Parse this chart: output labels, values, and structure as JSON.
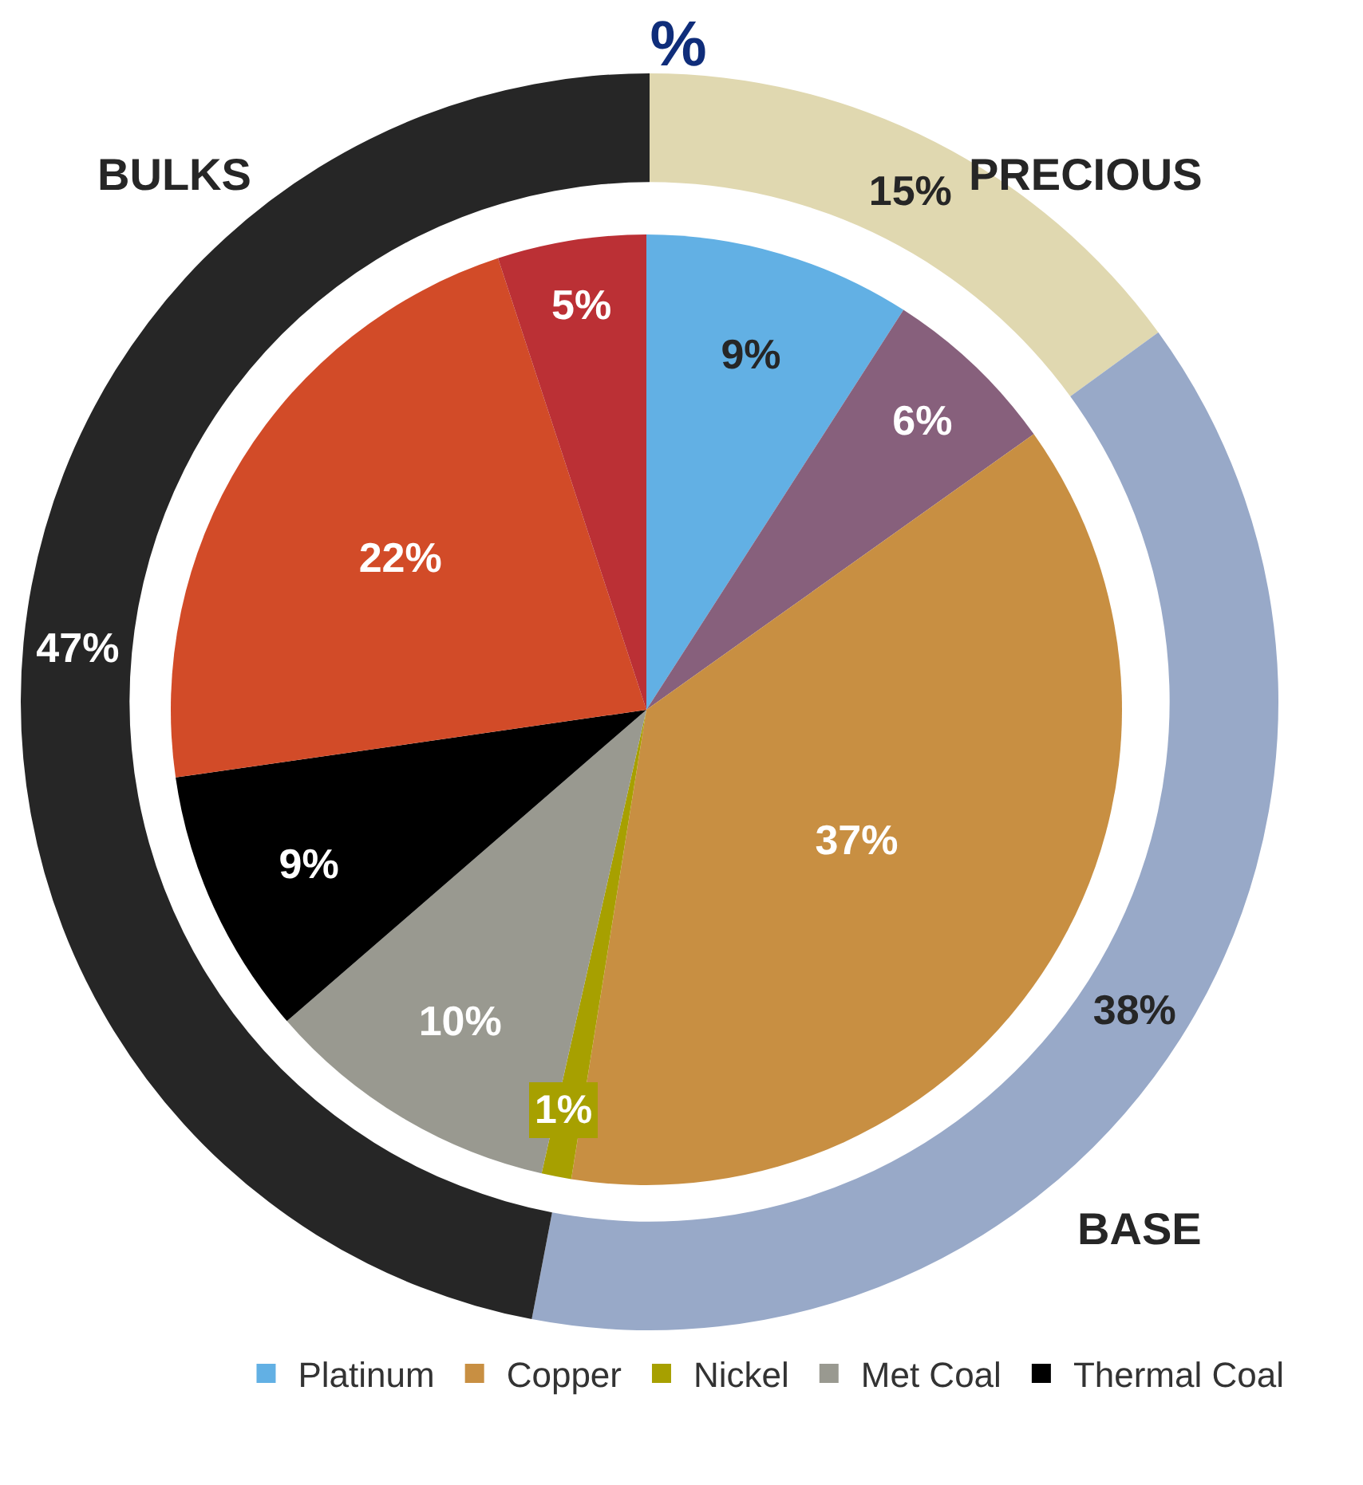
{
  "chart_data": [
    {
      "type": "donut",
      "title": "%",
      "categories": [
        "PRECIOUS",
        "BASE",
        "BULKS"
      ],
      "values": [
        15,
        38,
        47
      ],
      "colors": [
        "#e0d8b0",
        "#98a9c8",
        "#262626"
      ],
      "value_labels": [
        "15%",
        "38%",
        "47%"
      ]
    },
    {
      "type": "pie",
      "categories": [
        "Platinum",
        null,
        "Copper",
        "Nickel",
        "Met Coal",
        "Thermal Coal",
        null,
        null
      ],
      "values": [
        9,
        6,
        37,
        1,
        10,
        9,
        22,
        5
      ],
      "colors": [
        "#62b0e4",
        "#87607c",
        "#c88f42",
        "#a7a000",
        "#999990",
        "#000000",
        "#d24b28",
        "#bb3035"
      ],
      "value_labels": [
        "9%",
        "6%",
        "37%",
        "1%",
        "10%",
        "9%",
        "22%",
        "5%"
      ],
      "legend": "bottom"
    }
  ]
}
